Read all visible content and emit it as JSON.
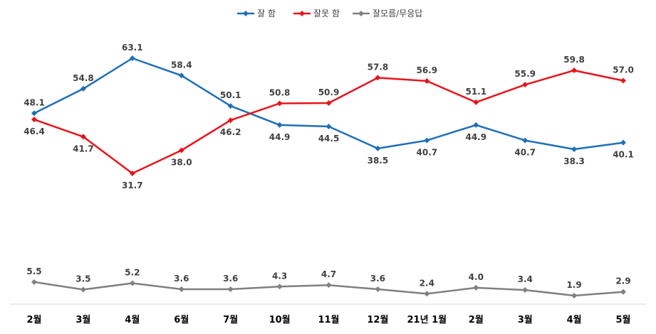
{
  "chart_data": {
    "type": "line",
    "categories": [
      "2월",
      "3월",
      "4월",
      "6월",
      "7월",
      "10월",
      "11월",
      "12월",
      "21년 1월",
      "2월",
      "3월",
      "4월",
      "5월"
    ],
    "series": [
      {
        "name": "잘 함",
        "color": "#1f6fb8",
        "values": [
          48.1,
          54.8,
          63.1,
          58.4,
          50.1,
          44.9,
          44.5,
          38.5,
          40.7,
          44.9,
          40.7,
          38.3,
          40.1
        ]
      },
      {
        "name": "잘못 함",
        "color": "#e8141b",
        "values": [
          46.4,
          41.7,
          31.7,
          38.0,
          46.2,
          50.8,
          50.9,
          57.8,
          56.9,
          51.1,
          55.9,
          59.8,
          57.0
        ]
      },
      {
        "name": "잘모름/무응답",
        "color": "#808080",
        "values": [
          5.5,
          3.5,
          5.2,
          3.6,
          3.6,
          4.3,
          4.7,
          3.6,
          2.4,
          4.0,
          3.4,
          1.9,
          2.9
        ]
      }
    ],
    "legend_position": "top-center",
    "grid": false
  }
}
